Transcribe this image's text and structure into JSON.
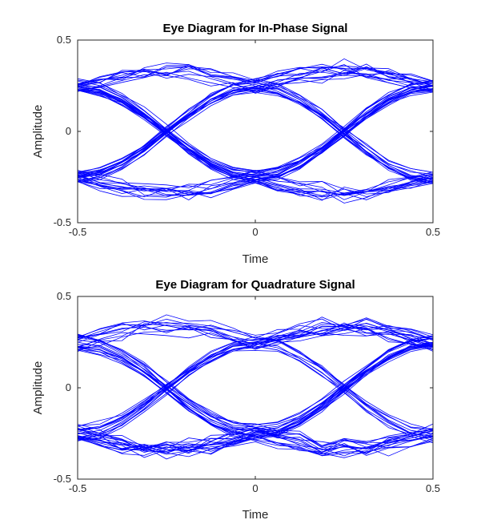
{
  "chart_data": [
    {
      "type": "line",
      "title": "Eye Diagram for In-Phase Signal",
      "xlabel": "Time",
      "ylabel": "Amplitude",
      "xlim": [
        -0.5,
        0.5
      ],
      "ylim": [
        -0.5,
        0.5
      ],
      "xticks": [
        -0.5,
        0,
        0.5
      ],
      "yticks": [
        -0.5,
        0,
        0.5
      ],
      "xtick_labels": [
        "-0.5",
        "0",
        "0.5"
      ],
      "ytick_labels": [
        "-0.5",
        "0",
        "0.5"
      ],
      "grid": false,
      "line_color": "#0000ff",
      "traces": {
        "count": 60,
        "x_step": 0.0625,
        "symbol_levels": [
          0.25,
          -0.25
        ],
        "level_jitter": 0.035,
        "overshoot": 0.12,
        "seed": 7
      }
    },
    {
      "type": "line",
      "title": "Eye Diagram for Quadrature Signal",
      "xlabel": "Time",
      "ylabel": "Amplitude",
      "xlim": [
        -0.5,
        0.5
      ],
      "ylim": [
        -0.5,
        0.5
      ],
      "xticks": [
        -0.5,
        0,
        0.5
      ],
      "yticks": [
        -0.5,
        0,
        0.5
      ],
      "xtick_labels": [
        "-0.5",
        "0",
        "0.5"
      ],
      "ytick_labels": [
        "-0.5",
        "0",
        "0.5"
      ],
      "grid": false,
      "line_color": "#0000ff",
      "traces": {
        "count": 60,
        "x_step": 0.0625,
        "symbol_levels": [
          0.25,
          -0.25
        ],
        "level_jitter": 0.045,
        "overshoot": 0.13,
        "seed": 19
      }
    }
  ]
}
